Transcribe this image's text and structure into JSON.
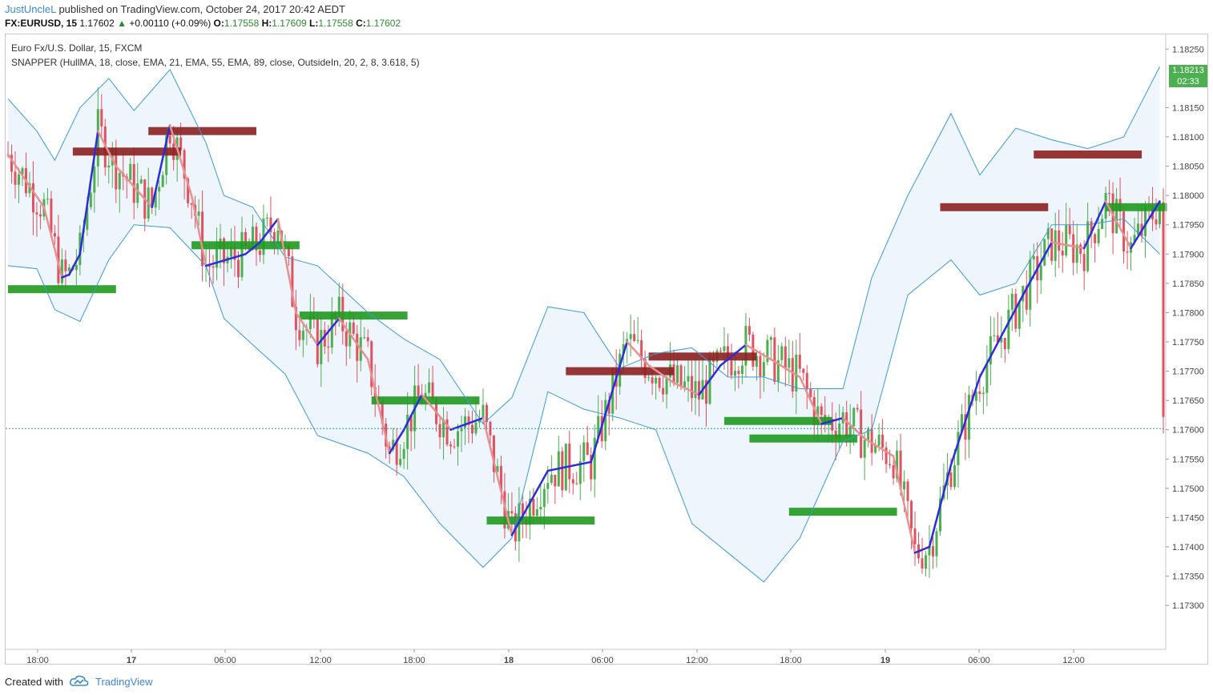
{
  "header": {
    "author": "JustUncleL",
    "published": "published on TradingView.com, October 24, 2017 20:42 AEDT",
    "symbol": "FX:EURUSD, 15",
    "price": "1.17602",
    "change": "+0.00110 (+0.09%)",
    "o_label": "O:",
    "o": "1.17558",
    "h_label": "H:",
    "h": "1.17609",
    "l_label": "L:",
    "l": "1.17558",
    "c_label": "C:",
    "c": "1.17602"
  },
  "legend": {
    "symbol_line": "Euro Fx/U.S. Dollar, 15, FXCM",
    "indicator_line": "SNAPPER (HullMA, 18, close, EMA, 21, EMA, 55, EMA, 89, close, OutsideIn, 20, 2, 8, 3.618, 5)"
  },
  "price_badge": {
    "value": "1.18213",
    "timer": "02:33"
  },
  "footer": {
    "created": "Created with",
    "brand": "TradingView"
  },
  "colors": {
    "bull": "#4caf50",
    "bear": "#e05260",
    "hull_up": "#2b2be0",
    "hull_down": "#e89090",
    "band": "#3a9ad9",
    "band_fill": "#eef5fc",
    "support": "#1f9a1f",
    "resistance": "#8b2020"
  },
  "chart_data": {
    "type": "line",
    "title": "Euro Fx/U.S. Dollar, 15, FXCM",
    "ylim": [
      1.17225,
      1.18275
    ],
    "y_ticks": [
      "1.18250",
      "1.18150",
      "1.18100",
      "1.18050",
      "1.18000",
      "1.17950",
      "1.17900",
      "1.17850",
      "1.17800",
      "1.17750",
      "1.17700",
      "1.17650",
      "1.17600",
      "1.17550",
      "1.17500",
      "1.17450",
      "1.17400",
      "1.17350",
      "1.17300"
    ],
    "x_ticks": [
      "18:00",
      "17",
      "06:00",
      "12:00",
      "18:00",
      "18",
      "06:00",
      "12:00",
      "18:00",
      "19",
      "06:00",
      "12:00"
    ],
    "last_price": 1.17602,
    "series": [
      {
        "name": "HullMA",
        "x": [
          0,
          10,
          15,
          17,
          20,
          25,
          30,
          40,
          45,
          51,
          55,
          66,
          70,
          75,
          80,
          86,
          92,
          100,
          106,
          110,
          115,
          123,
          132,
          140,
          150,
          162,
          172,
          178,
          185,
          192,
          198,
          205,
          212,
          220,
          226,
          232,
          238,
          246,
          252,
          256,
          262,
          270,
          276,
          282,
          290,
          299,
          305,
          312,
          320
        ],
        "y": [
          1.1807,
          1.1798,
          1.1786,
          1.17865,
          1.179,
          1.1811,
          1.1805,
          1.1798,
          1.1812,
          1.18,
          1.1788,
          1.179,
          1.1792,
          1.1796,
          1.178,
          1.17745,
          1.1779,
          1.1772,
          1.1756,
          1.176,
          1.1766,
          1.176,
          1.1762,
          1.1742,
          1.1753,
          1.17545,
          1.1775,
          1.1771,
          1.1768,
          1.1766,
          1.1771,
          1.17745,
          1.1772,
          1.1769,
          1.1761,
          1.1762,
          1.17585,
          1.17555,
          1.1739,
          1.174,
          1.1754,
          1.1769,
          1.1776,
          1.1783,
          1.1792,
          1.1791,
          1.1799,
          1.1791,
          1.1799
        ]
      },
      {
        "name": "BB upper",
        "x": [
          0,
          8,
          13,
          20,
          28,
          35,
          45,
          55,
          60,
          68,
          77,
          86,
          100,
          110,
          120,
          132,
          140,
          150,
          160,
          170,
          180,
          190,
          200,
          210,
          220,
          232,
          240,
          250,
          262,
          270,
          280,
          290,
          300,
          310,
          320
        ],
        "y": [
          1.18165,
          1.1811,
          1.1806,
          1.1815,
          1.182,
          1.18145,
          1.18215,
          1.1809,
          1.18,
          1.1798,
          1.17895,
          1.1788,
          1.178,
          1.17755,
          1.1772,
          1.1761,
          1.17655,
          1.1781,
          1.178,
          1.17705,
          1.1773,
          1.1774,
          1.1769,
          1.1769,
          1.1767,
          1.1767,
          1.1786,
          1.18,
          1.1814,
          1.18035,
          1.18115,
          1.18095,
          1.1808,
          1.181,
          1.1822
        ]
      },
      {
        "name": "BB lower",
        "x": [
          0,
          8,
          13,
          20,
          28,
          35,
          45,
          55,
          60,
          68,
          77,
          86,
          100,
          110,
          120,
          132,
          140,
          150,
          160,
          170,
          180,
          190,
          200,
          210,
          220,
          232,
          240,
          250,
          262,
          270,
          280,
          290,
          300,
          310,
          320
        ],
        "y": [
          1.1788,
          1.17875,
          1.17805,
          1.17785,
          1.1789,
          1.1795,
          1.17945,
          1.1788,
          1.1779,
          1.17745,
          1.17695,
          1.1759,
          1.1756,
          1.1752,
          1.1744,
          1.17365,
          1.17415,
          1.17665,
          1.17635,
          1.1762,
          1.176,
          1.1744,
          1.1739,
          1.1734,
          1.17415,
          1.1758,
          1.176,
          1.1783,
          1.1789,
          1.1783,
          1.1785,
          1.1795,
          1.1795,
          1.1796,
          1.179
        ]
      }
    ],
    "levels": [
      {
        "type": "support",
        "price": 1.1784,
        "x_from": 0,
        "x_to": 30
      },
      {
        "type": "support",
        "price": 1.17915,
        "x_from": 51,
        "x_to": 81
      },
      {
        "type": "support",
        "price": 1.17795,
        "x_from": 81,
        "x_to": 111
      },
      {
        "type": "support",
        "price": 1.1765,
        "x_from": 101,
        "x_to": 131
      },
      {
        "type": "support",
        "price": 1.17445,
        "x_from": 133,
        "x_to": 163
      },
      {
        "type": "support",
        "price": 1.17615,
        "x_from": 199,
        "x_to": 229
      },
      {
        "type": "support",
        "price": 1.17585,
        "x_from": 206,
        "x_to": 236
      },
      {
        "type": "support",
        "price": 1.1746,
        "x_from": 217,
        "x_to": 247
      },
      {
        "type": "support",
        "price": 1.1798,
        "x_from": 305,
        "x_to": 322
      },
      {
        "type": "resistance",
        "price": 1.18075,
        "x_from": 18,
        "x_to": 48
      },
      {
        "type": "resistance",
        "price": 1.1811,
        "x_from": 39,
        "x_to": 69
      },
      {
        "type": "resistance",
        "price": 1.177,
        "x_from": 155,
        "x_to": 185
      },
      {
        "type": "resistance",
        "price": 1.17725,
        "x_from": 178,
        "x_to": 208
      },
      {
        "type": "resistance",
        "price": 1.1798,
        "x_from": 259,
        "x_to": 289
      },
      {
        "type": "resistance",
        "price": 1.1807,
        "x_from": 285,
        "x_to": 315
      }
    ],
    "bars": 322
  }
}
